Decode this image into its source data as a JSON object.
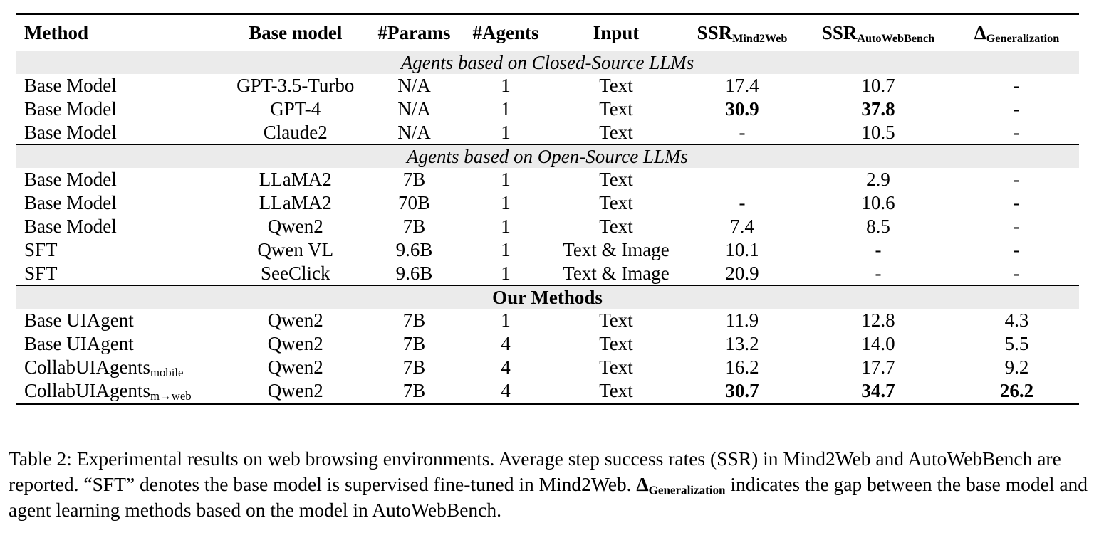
{
  "table": {
    "header": [
      "Method",
      "Base model",
      "#Params",
      "#Agents",
      "Input",
      {
        "text": "SSR",
        "sub": "Mind2Web"
      },
      {
        "text": "SSR",
        "sub": "AutoWebBench"
      },
      {
        "text": "Δ",
        "sub": "Generalization"
      }
    ],
    "sections": [
      {
        "title": "Agents based on Closed-Source LLMs",
        "style": "italic",
        "rows": [
          [
            "Base Model",
            "GPT-3.5-Turbo",
            "N/A",
            "1",
            "Text",
            "17.4",
            "10.7",
            "-"
          ],
          [
            "Base Model",
            "GPT-4",
            "N/A",
            "1",
            "Text",
            {
              "text": "30.9",
              "bold": true
            },
            {
              "text": "37.8",
              "bold": true
            },
            "-"
          ],
          [
            "Base Model",
            "Claude2",
            "N/A",
            "1",
            "Text",
            "-",
            "10.5",
            "-"
          ]
        ]
      },
      {
        "title": "Agents based on Open-Source LLMs",
        "style": "italic",
        "rows": [
          [
            "Base Model",
            "LLaMA2",
            "7B",
            "1",
            "Text",
            null,
            "2.9",
            "-"
          ],
          [
            "Base Model",
            "LLaMA2",
            "70B",
            "1",
            "Text",
            "-",
            "10.6",
            "-"
          ],
          [
            "Base Model",
            "Qwen2",
            "7B",
            "1",
            "Text",
            "7.4",
            "8.5",
            "-"
          ],
          [
            "SFT",
            "Qwen VL",
            "9.6B",
            "1",
            "Text & Image",
            "10.1",
            "-",
            "-"
          ],
          [
            "SFT",
            "SeeClick",
            "9.6B",
            "1",
            "Text & Image",
            "20.9",
            "-",
            "-"
          ]
        ]
      },
      {
        "title": "Our Methods",
        "style": "bold",
        "rows": [
          [
            "Base UIAgent",
            "Qwen2",
            "7B",
            "1",
            "Text",
            "11.9",
            "12.8",
            "4.3"
          ],
          [
            "Base UIAgent",
            "Qwen2",
            "7B",
            "4",
            "Text",
            "13.2",
            "14.0",
            "5.5"
          ],
          [
            {
              "text": "CollabUIAgents",
              "sub": "mobile"
            },
            "Qwen2",
            "7B",
            "4",
            "Text",
            "16.2",
            "17.7",
            "9.2"
          ],
          [
            {
              "text": "CollabUIAgents",
              "sub": "m→web"
            },
            "Qwen2",
            "7B",
            "4",
            "Text",
            {
              "text": "30.7",
              "bold": true
            },
            {
              "text": "34.7",
              "bold": true
            },
            {
              "text": "26.2",
              "bold": true
            }
          ]
        ]
      }
    ]
  },
  "caption": {
    "before": "Table 2: Experimental results on web browsing environments. Average step success rates (SSR) in Mind2Web and AutoWebBench are reported. “SFT” denotes the base model is supervised fine-tuned in Mind2Web.",
    "symbol": "Δ",
    "sub": "Generalization",
    "after": "indicates the gap between the base model and agent learning methods based on the model in AutoWebBench."
  }
}
